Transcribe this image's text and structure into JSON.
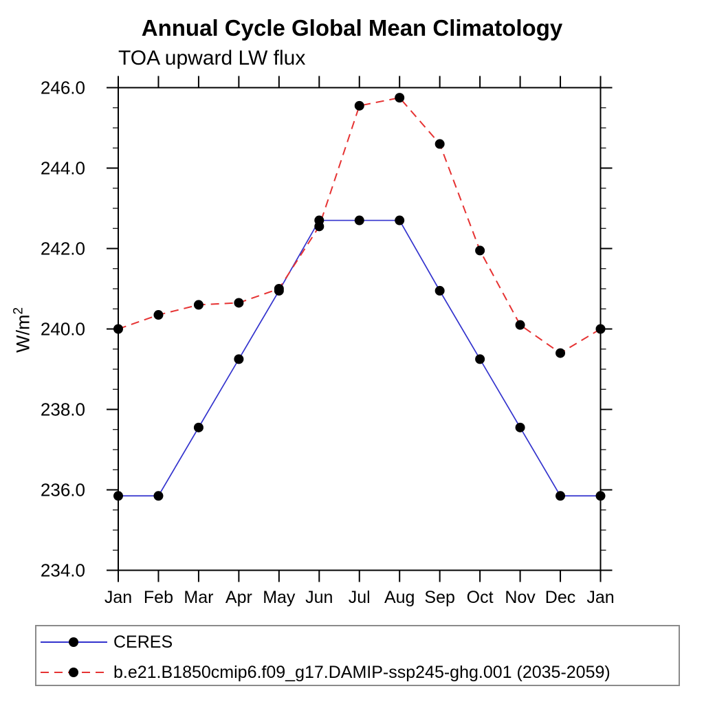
{
  "title": "Annual Cycle Global Mean Climatology",
  "subtitle": "TOA upward LW flux",
  "ylabel": {
    "base": "W/m",
    "exp": "2"
  },
  "chart_data": {
    "type": "line",
    "title": "Annual Cycle Global Mean Climatology",
    "subtitle": "TOA upward LW flux",
    "xlabel": "",
    "ylabel": "W/m²",
    "categories": [
      "Jan",
      "Feb",
      "Mar",
      "Apr",
      "May",
      "Jun",
      "Jul",
      "Aug",
      "Sep",
      "Oct",
      "Nov",
      "Dec",
      "Jan"
    ],
    "ylim": [
      234.0,
      246.0
    ],
    "ytick_major": 2.0,
    "ytick_minor": 0.5,
    "ytick_labels": [
      "234.0",
      "236.0",
      "238.0",
      "240.0",
      "242.0",
      "244.0",
      "246.0"
    ],
    "grid": false,
    "legend_position": "bottom-left-box",
    "marker": "circle",
    "marker_color": "#000000",
    "axis_color": "#000000",
    "series": [
      {
        "name": "CERES",
        "color": "#3232cd",
        "style": "solid",
        "values": [
          235.85,
          235.85,
          237.55,
          239.25,
          240.95,
          242.7,
          242.7,
          242.7,
          240.95,
          239.25,
          237.55,
          235.85,
          235.85
        ]
      },
      {
        "name": "b.e21.B1850cmip6.f09_g17.DAMIP-ssp245-ghg.001 (2035-2059)",
        "color": "#e63232",
        "style": "dashed",
        "values": [
          240.0,
          240.35,
          240.6,
          240.65,
          241.0,
          242.55,
          245.55,
          245.75,
          244.6,
          241.95,
          240.1,
          239.4,
          240.0
        ]
      }
    ]
  }
}
